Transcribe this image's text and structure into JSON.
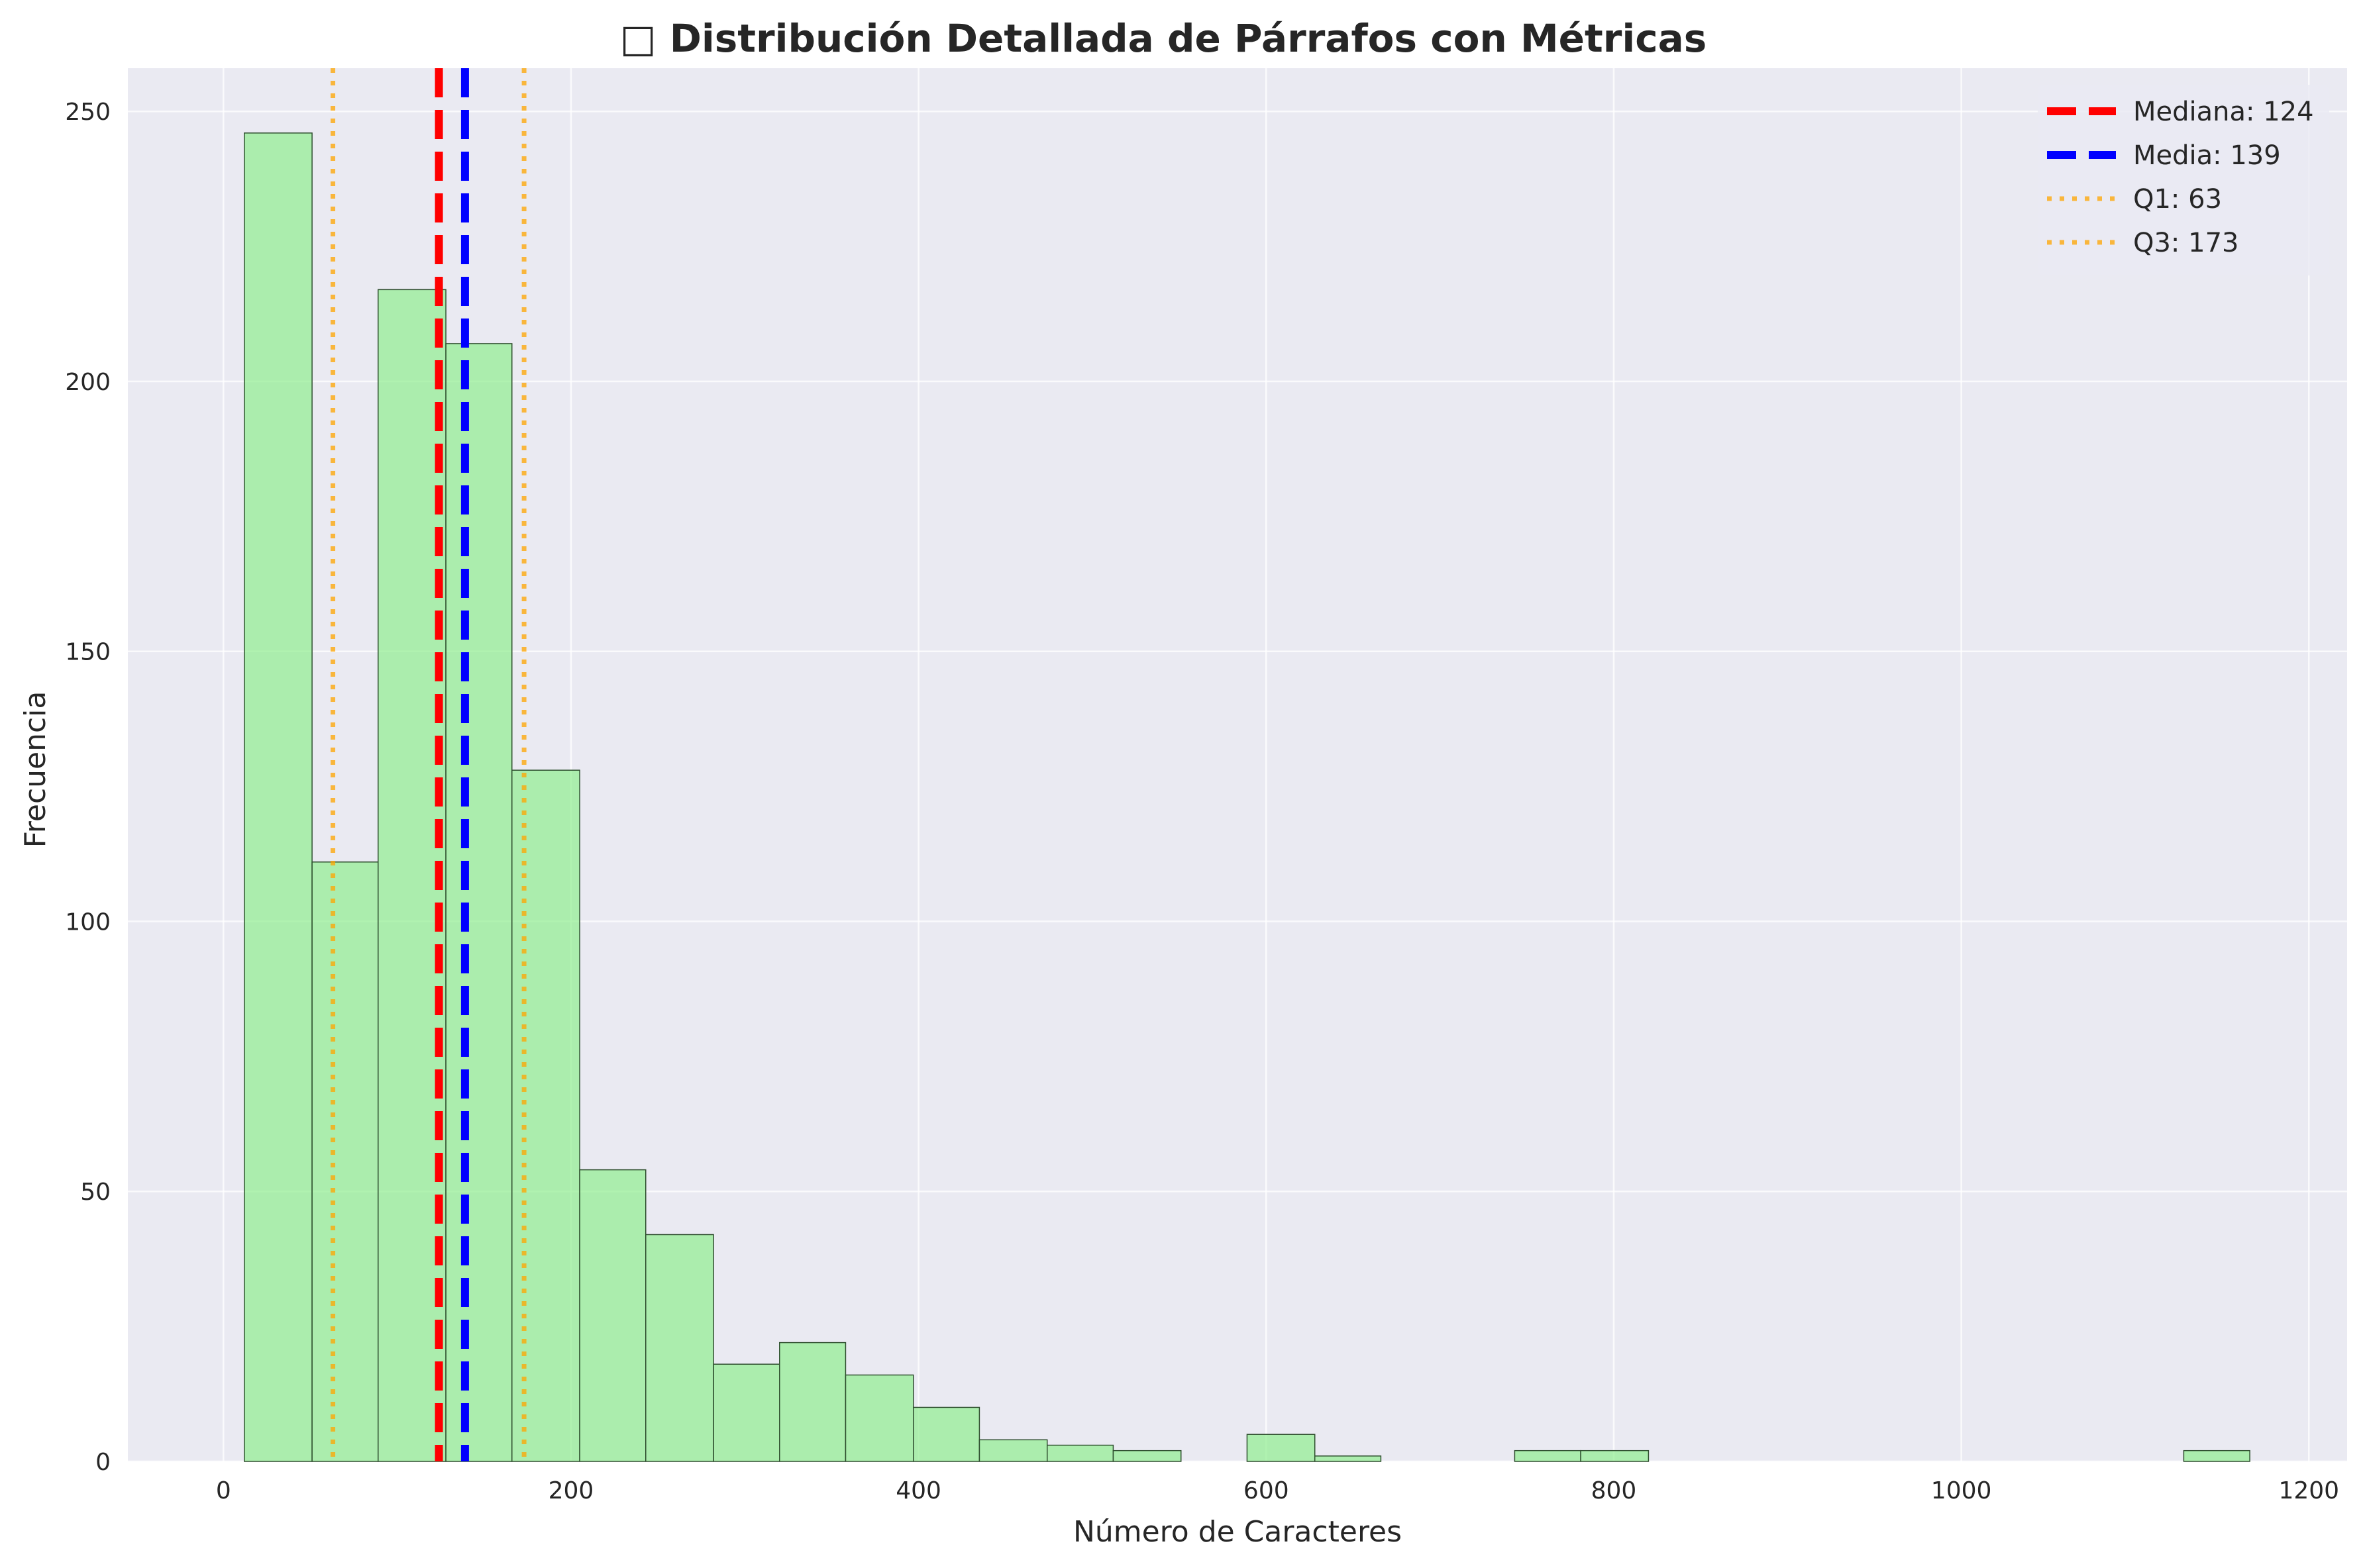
{
  "chart_data": {
    "type": "bar",
    "subtype": "histogram",
    "title": "□ Distribución Detallada de Párrafos con Métricas",
    "xlabel": "Número de Caracteres",
    "ylabel": "Frecuencia",
    "xlim": [
      -55,
      1222
    ],
    "ylim": [
      0,
      258
    ],
    "xticks": [
      0,
      200,
      400,
      600,
      800,
      1000,
      1200
    ],
    "yticks": [
      0,
      50,
      100,
      150,
      200,
      250
    ],
    "grid": true,
    "legend_position": "top-right",
    "bar_color": "#90ee90",
    "bar_edge_color": "#2f4f2f",
    "background_color": "#eaeaf2",
    "bins": [
      {
        "start": 12,
        "end": 51,
        "count": 246
      },
      {
        "start": 51,
        "end": 89,
        "count": 111
      },
      {
        "start": 89,
        "end": 128,
        "count": 217
      },
      {
        "start": 128,
        "end": 166,
        "count": 207
      },
      {
        "start": 166,
        "end": 205,
        "count": 128
      },
      {
        "start": 205,
        "end": 243,
        "count": 54
      },
      {
        "start": 243,
        "end": 282,
        "count": 42
      },
      {
        "start": 282,
        "end": 320,
        "count": 18
      },
      {
        "start": 320,
        "end": 358,
        "count": 22
      },
      {
        "start": 358,
        "end": 397,
        "count": 16
      },
      {
        "start": 397,
        "end": 435,
        "count": 10
      },
      {
        "start": 435,
        "end": 474,
        "count": 4
      },
      {
        "start": 474,
        "end": 512,
        "count": 3
      },
      {
        "start": 512,
        "end": 551,
        "count": 2
      },
      {
        "start": 551,
        "end": 589,
        "count": 0
      },
      {
        "start": 589,
        "end": 628,
        "count": 5
      },
      {
        "start": 628,
        "end": 666,
        "count": 1
      },
      {
        "start": 666,
        "end": 705,
        "count": 0
      },
      {
        "start": 705,
        "end": 743,
        "count": 0
      },
      {
        "start": 743,
        "end": 781,
        "count": 2
      },
      {
        "start": 781,
        "end": 820,
        "count": 2
      },
      {
        "start": 820,
        "end": 858,
        "count": 0
      },
      {
        "start": 858,
        "end": 897,
        "count": 0
      },
      {
        "start": 897,
        "end": 935,
        "count": 0
      },
      {
        "start": 935,
        "end": 974,
        "count": 0
      },
      {
        "start": 974,
        "end": 1012,
        "count": 0
      },
      {
        "start": 1012,
        "end": 1051,
        "count": 0
      },
      {
        "start": 1051,
        "end": 1089,
        "count": 0
      },
      {
        "start": 1089,
        "end": 1128,
        "count": 0
      },
      {
        "start": 1128,
        "end": 1166,
        "count": 2
      }
    ],
    "reference_lines": [
      {
        "label": "Mediana: 124",
        "value": 124,
        "color": "#ff0000",
        "style": "dashed"
      },
      {
        "label": "Media: 139",
        "value": 139,
        "color": "#0000ff",
        "style": "dashed"
      },
      {
        "label": "Q1: 63",
        "value": 63,
        "color": "#ffa500",
        "style": "dotted"
      },
      {
        "label": "Q3: 173",
        "value": 173,
        "color": "#ffa500",
        "style": "dotted"
      }
    ]
  }
}
